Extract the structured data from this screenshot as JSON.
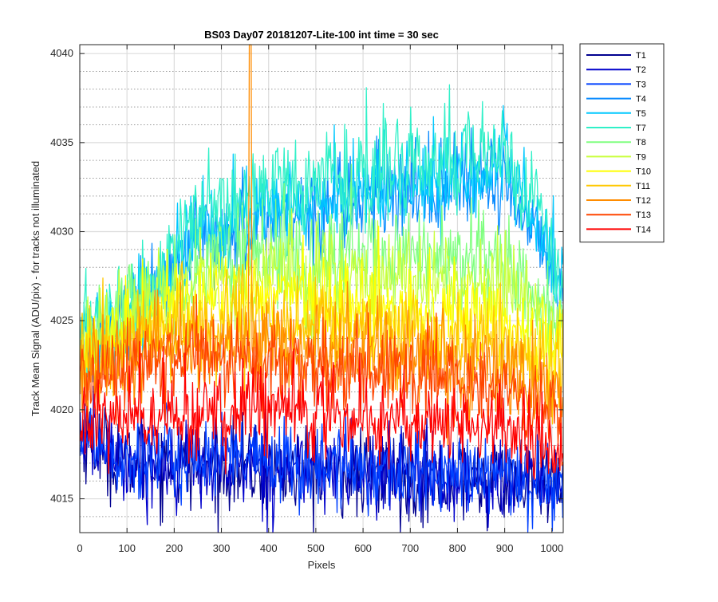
{
  "chart_data": {
    "type": "line",
    "title": "BS03 Day07 20181207-Lite-100 int time = 30 sec",
    "xlabel": "Pixels",
    "ylabel": "Track Mean Signal (ADU/pix) - for tracks not illuminated",
    "xlim": [
      0,
      1024
    ],
    "ylim": [
      4013.1,
      4040.5
    ],
    "xticks": [
      0,
      100,
      200,
      300,
      400,
      500,
      600,
      700,
      800,
      900,
      1000
    ],
    "yticks": [
      4015,
      4020,
      4025,
      4030,
      4035,
      4040
    ],
    "ymajor_grid": "solid",
    "yminor_grid": "dotted",
    "legend_position": "outside-right-top",
    "series": [
      {
        "name": "T1",
        "color": "#00008f",
        "baseline": [
          [
            0,
            4018.6
          ],
          [
            100,
            4017.0
          ],
          [
            300,
            4016.8
          ],
          [
            600,
            4016.3
          ],
          [
            900,
            4015.9
          ],
          [
            1024,
            4015.5
          ]
        ],
        "noise": 1.2
      },
      {
        "name": "T2",
        "color": "#0000cc",
        "baseline": [
          [
            0,
            4018.7
          ],
          [
            100,
            4017.2
          ],
          [
            300,
            4017.0
          ],
          [
            600,
            4016.5
          ],
          [
            900,
            4016.0
          ],
          [
            1024,
            4015.7
          ]
        ],
        "noise": 1.2
      },
      {
        "name": "T3",
        "color": "#0040ff",
        "baseline": [
          [
            0,
            4018.8
          ],
          [
            100,
            4017.4
          ],
          [
            300,
            4017.2
          ],
          [
            600,
            4016.7
          ],
          [
            900,
            4016.2
          ],
          [
            1024,
            4015.9
          ]
        ],
        "noise": 1.2
      },
      {
        "name": "T4",
        "color": "#0a8cff",
        "baseline": [
          [
            0,
            4023.6
          ],
          [
            150,
            4025.6
          ],
          [
            250,
            4029.4
          ],
          [
            400,
            4030.8
          ],
          [
            600,
            4031.8
          ],
          [
            800,
            4032.6
          ],
          [
            900,
            4032.9
          ],
          [
            980,
            4029.5
          ],
          [
            1024,
            4025.8
          ]
        ],
        "noise": 1.3
      },
      {
        "name": "T5",
        "color": "#00c8ff",
        "baseline": [
          [
            0,
            4023.8
          ],
          [
            150,
            4026.0
          ],
          [
            250,
            4029.9
          ],
          [
            400,
            4031.2
          ],
          [
            600,
            4032.1
          ],
          [
            800,
            4033.1
          ],
          [
            900,
            4033.5
          ],
          [
            980,
            4030.0
          ],
          [
            1024,
            4026.0
          ]
        ],
        "noise": 1.3
      },
      {
        "name": "T7",
        "color": "#30f0c8",
        "baseline": [
          [
            0,
            4024.2
          ],
          [
            150,
            4026.9
          ],
          [
            250,
            4031.0
          ],
          [
            400,
            4032.3
          ],
          [
            600,
            4033.0
          ],
          [
            800,
            4034.5
          ],
          [
            900,
            4034.6
          ],
          [
            980,
            4031.0
          ],
          [
            1024,
            4026.5
          ]
        ],
        "noise": 1.4
      },
      {
        "name": "T8",
        "color": "#80ff80",
        "baseline": [
          [
            0,
            4023.8
          ],
          [
            150,
            4026.8
          ],
          [
            300,
            4028.3
          ],
          [
            500,
            4028.6
          ],
          [
            700,
            4028.7
          ],
          [
            900,
            4028.4
          ],
          [
            1024,
            4024.5
          ]
        ],
        "noise": 1.3
      },
      {
        "name": "T9",
        "color": "#c8ff3c",
        "baseline": [
          [
            0,
            4023.4
          ],
          [
            150,
            4026.1
          ],
          [
            300,
            4027.4
          ],
          [
            500,
            4027.6
          ],
          [
            700,
            4027.4
          ],
          [
            900,
            4026.8
          ],
          [
            1024,
            4024.0
          ]
        ],
        "noise": 1.3
      },
      {
        "name": "T10",
        "color": "#ffff00",
        "baseline": [
          [
            0,
            4023.0
          ],
          [
            150,
            4025.1
          ],
          [
            300,
            4026.2
          ],
          [
            500,
            4026.1
          ],
          [
            700,
            4025.6
          ],
          [
            900,
            4024.8
          ],
          [
            1024,
            4022.8
          ]
        ],
        "noise": 1.3
      },
      {
        "name": "T11",
        "color": "#ffc800",
        "baseline": [
          [
            0,
            4022.5
          ],
          [
            150,
            4024.3
          ],
          [
            300,
            4025.0
          ],
          [
            500,
            4024.9
          ],
          [
            700,
            4024.2
          ],
          [
            900,
            4023.4
          ],
          [
            1024,
            4021.8
          ]
        ],
        "noise": 1.3
      },
      {
        "name": "T12",
        "color": "#ff8c00",
        "baseline": [
          [
            0,
            4022.0
          ],
          [
            150,
            4023.3
          ],
          [
            300,
            4023.7
          ],
          [
            500,
            4023.5
          ],
          [
            700,
            4022.9
          ],
          [
            900,
            4022.1
          ],
          [
            1024,
            4020.8
          ]
        ],
        "noise": 1.3,
        "spike": {
          "x": [
            359,
            363
          ],
          "y": 4040.5
        }
      },
      {
        "name": "T13",
        "color": "#ff4600",
        "baseline": [
          [
            0,
            4021.5
          ],
          [
            150,
            4022.6
          ],
          [
            300,
            4023.0
          ],
          [
            500,
            4022.7
          ],
          [
            700,
            4022.0
          ],
          [
            900,
            4021.1
          ],
          [
            1024,
            4019.8
          ]
        ],
        "noise": 1.3
      },
      {
        "name": "T14",
        "color": "#ff0000",
        "baseline": [
          [
            0,
            4019.7
          ],
          [
            150,
            4019.9
          ],
          [
            300,
            4020.1
          ],
          [
            500,
            4019.9
          ],
          [
            700,
            4019.4
          ],
          [
            900,
            4018.9
          ],
          [
            1024,
            4018.0
          ]
        ],
        "noise": 1.2
      }
    ]
  }
}
